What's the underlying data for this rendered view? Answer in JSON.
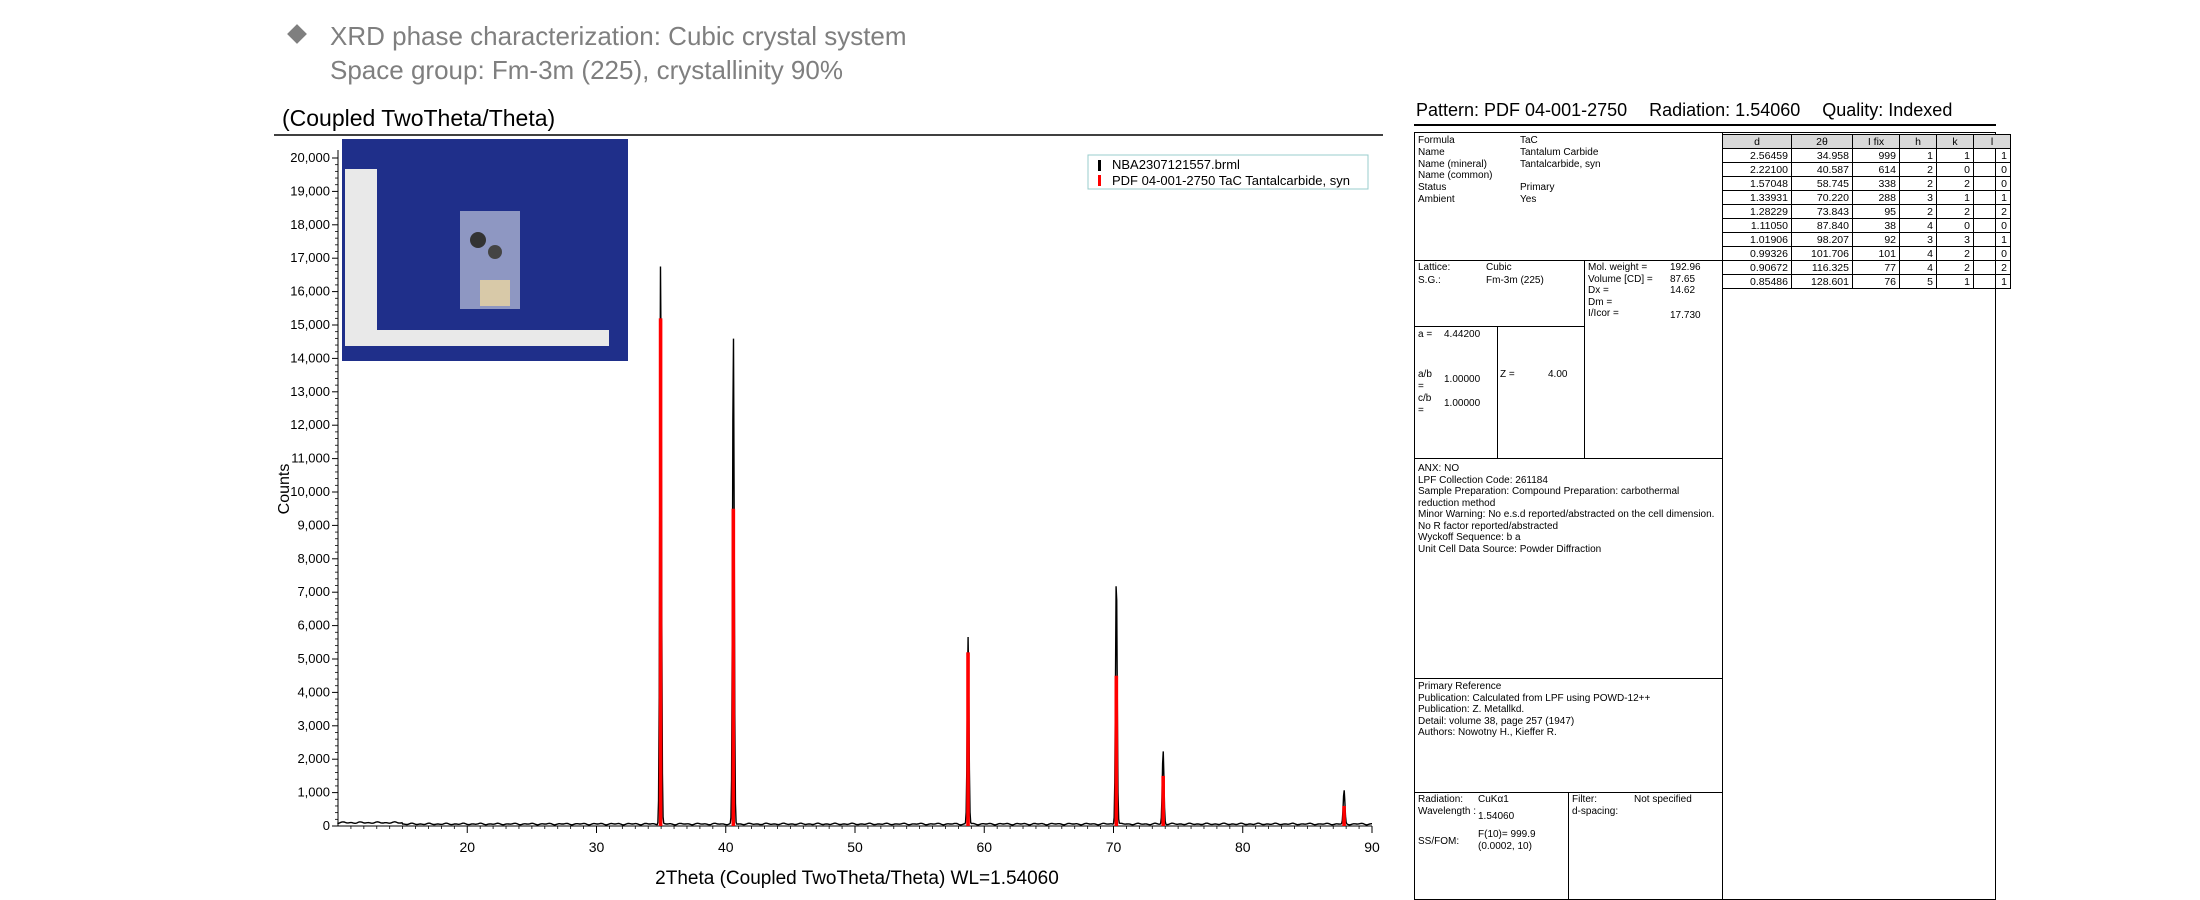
{
  "header": {
    "line1": "XRD phase characterization: Cubic crystal system",
    "line2": "Space group: Fm-3m (225), crystallinity 90%"
  },
  "chart_data": {
    "type": "line",
    "title": "(Coupled TwoTheta/Theta)",
    "xlabel": "2Theta (Coupled TwoTheta/Theta) WL=1.54060",
    "ylabel": "Counts",
    "xlim": [
      10,
      90
    ],
    "ylim": [
      0,
      20500
    ],
    "x_ticks": [
      20,
      30,
      40,
      50,
      60,
      70,
      80,
      90
    ],
    "y_ticks": [
      0,
      1000,
      2000,
      3000,
      4000,
      5000,
      6000,
      7000,
      8000,
      9000,
      10000,
      11000,
      12000,
      13000,
      14000,
      15000,
      16000,
      17000,
      18000,
      19000,
      20000
    ],
    "y_tick_labels": [
      "0",
      "1,000",
      "2,000",
      "3,000",
      "4,000",
      "5,000",
      "6,000",
      "7,000",
      "8,000",
      "9,000",
      "10,000",
      "11,000",
      "12,000",
      "13,000",
      "14,000",
      "15,000",
      "16,000",
      "17,000",
      "18,000",
      "19,000",
      "20,000"
    ],
    "legend_position": "top-right",
    "series": [
      {
        "name": "NBA2307121557.brml",
        "color": "#000000",
        "baseline": 0,
        "peaks": [
          {
            "x": 34.96,
            "y": 16900
          },
          {
            "x": 40.59,
            "y": 14700
          },
          {
            "x": 58.75,
            "y": 5600
          },
          {
            "x": 70.22,
            "y": 7500
          },
          {
            "x": 73.84,
            "y": 2200
          },
          {
            "x": 87.84,
            "y": 1000
          }
        ]
      },
      {
        "name": "PDF 04-001-2750 TaC Tantalcarbide, syn",
        "color": "#ff0000",
        "peaks": [
          {
            "x": 34.958,
            "y": 15200
          },
          {
            "x": 40.587,
            "y": 9500
          },
          {
            "x": 58.745,
            "y": 5200
          },
          {
            "x": 70.22,
            "y": 4500
          },
          {
            "x": 73.843,
            "y": 1500
          },
          {
            "x": 87.84,
            "y": 600
          }
        ]
      }
    ],
    "inset_photo": {
      "background": "#1f2f8a",
      "description_visible": false
    }
  },
  "pattern_card": {
    "title_pattern": "Pattern: PDF 04-001-2750",
    "title_radiation": "Radiation: 1.54060",
    "title_quality": "Quality: Indexed",
    "info_rows": [
      {
        "label": "Formula",
        "value": "TaC"
      },
      {
        "label": "Name",
        "value": "Tantalum Carbide"
      },
      {
        "label": "Name (mineral)",
        "value": "Tantalcarbide, syn"
      },
      {
        "label": "Name (common)",
        "value": ""
      },
      {
        "label": "Status",
        "value": "Primary"
      },
      {
        "label": "Ambient",
        "value": "Yes"
      }
    ],
    "lattice": {
      "label": "Lattice:",
      "value": "Cubic",
      "sg_label": "S.G.:",
      "sg_value": "Fm-3m (225)"
    },
    "props": [
      {
        "label": "Mol. weight =",
        "value": "192.96"
      },
      {
        "label": "Volume [CD] =",
        "value": "87.65"
      },
      {
        "label": "Dx =",
        "value": "14.62"
      },
      {
        "label": "Dm =",
        "value": ""
      },
      {
        "label": "I/Icor =",
        "value": "17.730"
      }
    ],
    "cell": {
      "a_label": "a =",
      "a": "4.44200",
      "ab_label": "a/b =",
      "ab": "1.00000",
      "cb_label": "c/b =",
      "cb": "1.00000",
      "z_label": "Z =",
      "z": "4.00"
    },
    "notes": [
      "ANX: NO",
      "LPF Collection Code: 261184",
      "Sample Preparation: Compound Preparation: carbothermal",
      "reduction method",
      "Minor Warning: No e.s.d reported/abstracted on the cell dimension.",
      "No R factor reported/abstracted",
      "Wyckoff Sequence: b a",
      "Unit Cell Data Source: Powder Diffraction"
    ],
    "reference": [
      "Primary Reference",
      "Publication: Calculated from LPF using POWD-12++",
      "Publication: Z. Metallkd.",
      "Detail: volume 38, page 257 (1947)",
      "Authors: Nowotny H., Kieffer R."
    ],
    "radiation": {
      "label": "Radiation:",
      "value": "CuKα1",
      "wl_label": "Wavelength :",
      "wl": "1.54060",
      "ss_label": "SS/FOM:",
      "ss1": "F(10)= 999.9",
      "ss2": "(0.0002, 10)",
      "filter_label": "Filter:",
      "filter": "Not specified",
      "dspacing_label": "d-spacing:"
    },
    "reflections_header": [
      "d",
      "2θ",
      "I fix",
      "h",
      "k",
      "l"
    ],
    "reflections": [
      [
        "2.56459",
        "34.958",
        "999",
        "1",
        "1",
        "1"
      ],
      [
        "2.22100",
        "40.587",
        "614",
        "2",
        "0",
        "0"
      ],
      [
        "1.57048",
        "58.745",
        "338",
        "2",
        "2",
        "0"
      ],
      [
        "1.33931",
        "70.220",
        "288",
        "3",
        "1",
        "1"
      ],
      [
        "1.28229",
        "73.843",
        "95",
        "2",
        "2",
        "2"
      ],
      [
        "1.11050",
        "87.840",
        "38",
        "4",
        "0",
        "0"
      ],
      [
        "1.01906",
        "98.207",
        "92",
        "3",
        "3",
        "1"
      ],
      [
        "0.99326",
        "101.706",
        "101",
        "4",
        "2",
        "0"
      ],
      [
        "0.90672",
        "116.325",
        "77",
        "4",
        "2",
        "2"
      ],
      [
        "0.85486",
        "128.601",
        "76",
        "5",
        "1",
        "1"
      ]
    ]
  }
}
